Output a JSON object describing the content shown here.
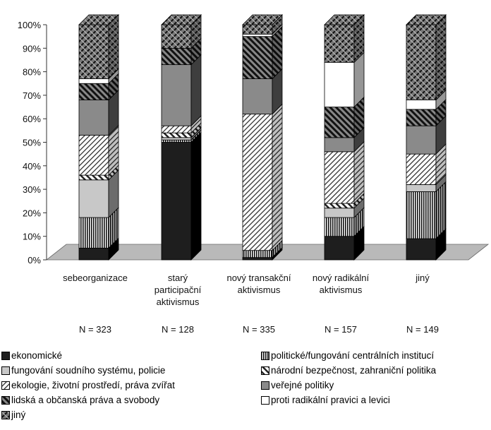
{
  "chart_data": {
    "type": "bar",
    "stacked": true,
    "percent_stacked": true,
    "style_3d": true,
    "y_ticks": [
      "0%",
      "10%",
      "20%",
      "30%",
      "40%",
      "50%",
      "60%",
      "70%",
      "80%",
      "90%",
      "100%"
    ],
    "ylim": [
      0,
      100
    ],
    "grid": false,
    "legend_position": "bottom",
    "categories": [
      [
        "sebeorganizace"
      ],
      [
        "starý",
        "participační",
        "aktivismus"
      ],
      [
        "nový transakční",
        "aktivismus"
      ],
      [
        "nový radikální",
        "aktivismus"
      ],
      [
        "jiný"
      ]
    ],
    "n_labels": [
      "N = 323",
      "N = 128",
      "N = 335",
      "N = 157",
      "N = 149"
    ],
    "series": [
      {
        "name": "ekonomické",
        "pattern": "solid-dark",
        "values": [
          5,
          50,
          1,
          10,
          9
        ]
      },
      {
        "name": "politické/fungování centrálních institucí",
        "pattern": "vertical-lines",
        "values": [
          13,
          1,
          3,
          8,
          20
        ]
      },
      {
        "name": "fungování soudního systému, policie",
        "pattern": "light-gray",
        "values": [
          16,
          1,
          0,
          4,
          3
        ]
      },
      {
        "name": "národní bezpečnost, zahraniční politika",
        "pattern": "diagonal-back",
        "values": [
          2,
          2,
          0,
          2,
          0
        ]
      },
      {
        "name": "ekologie, životní prostředí, práva zvířat",
        "pattern": "diagonal-dense",
        "values": [
          17,
          3,
          58,
          22,
          13
        ]
      },
      {
        "name": "veřejné politiky",
        "pattern": "medium-gray",
        "values": [
          15,
          26,
          15,
          6,
          12
        ]
      },
      {
        "name": "lidská a občanská práva a svobody",
        "pattern": "diagonal-bold",
        "values": [
          7,
          7,
          18,
          13,
          7
        ]
      },
      {
        "name": "proti radikální pravici a levici",
        "pattern": "white",
        "values": [
          2,
          0,
          1,
          19,
          4
        ]
      },
      {
        "name": "jiný",
        "pattern": "crosshatch",
        "values": [
          23,
          10,
          4,
          16,
          32
        ]
      }
    ]
  },
  "legend": [
    "ekonomické",
    "politické/fungování centrálních institucí",
    "fungování soudního systému, policie",
    "národní bezpečnost, zahraniční politika",
    "ekologie, životní prostředí, práva zvířat",
    "veřejné politiky",
    "lidská a občanská práva a svobody",
    "proti radikální pravici a levici",
    "jiný"
  ]
}
